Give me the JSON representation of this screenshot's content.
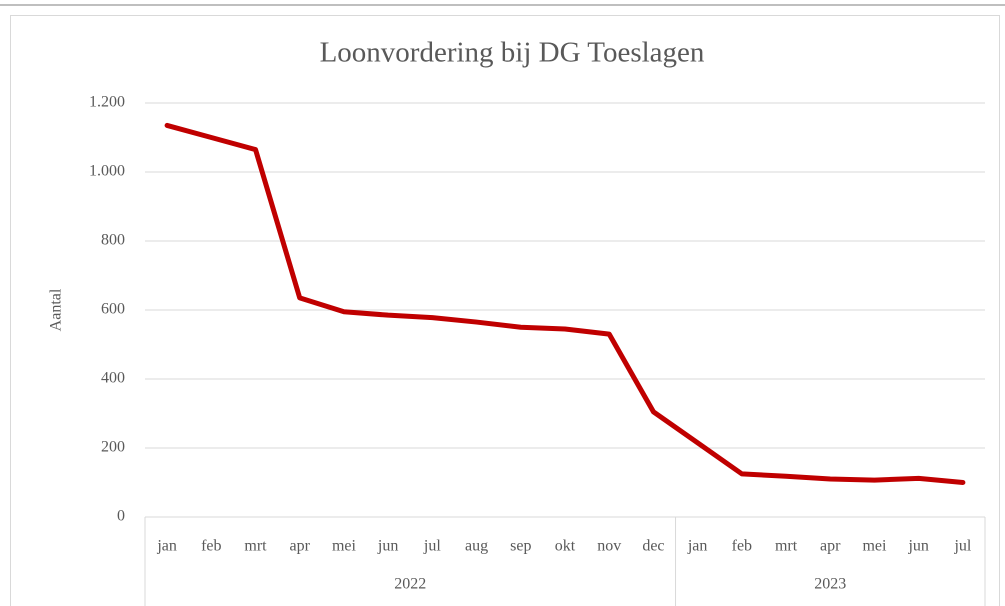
{
  "chart_data": {
    "type": "line",
    "title": "Loonvordering bij DG Toeslagen",
    "y_label": "Aantal",
    "groups": [
      {
        "label": "2022",
        "categories": [
          "jan",
          "feb",
          "mrt",
          "apr",
          "mei",
          "jun",
          "jul",
          "aug",
          "sep",
          "okt",
          "nov",
          "dec"
        ]
      },
      {
        "label": "2023",
        "categories": [
          "jan",
          "feb",
          "mrt",
          "apr",
          "mei",
          "jun",
          "jul"
        ]
      }
    ],
    "series": [
      {
        "name": "Aantal",
        "color": "#c00000",
        "values": [
          1135,
          1100,
          1065,
          635,
          595,
          585,
          578,
          565,
          550,
          545,
          530,
          305,
          215,
          125,
          118,
          110,
          107,
          112,
          100
        ]
      }
    ],
    "ylim": [
      0,
      1200
    ],
    "yticks": [
      0,
      200,
      400,
      600,
      800,
      {
        "value": 1000,
        "label": "1.000"
      },
      {
        "value": 1200,
        "label": "1.200"
      }
    ],
    "grid": true
  }
}
